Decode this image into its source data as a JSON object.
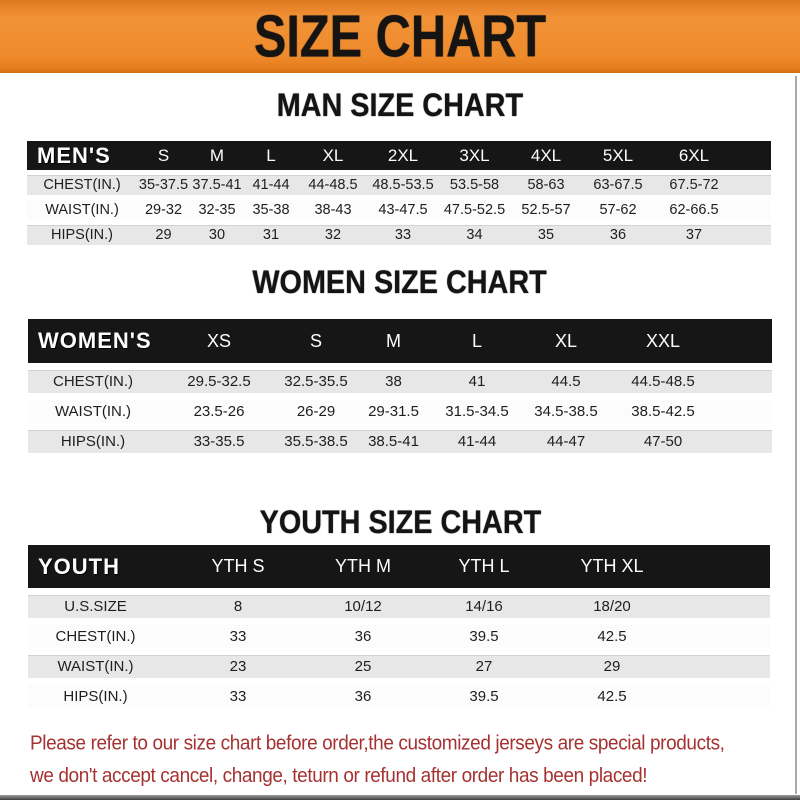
{
  "banner": {
    "title": "SIZE CHART"
  },
  "sections": {
    "men": {
      "heading": "MAN SIZE CHART"
    },
    "women": {
      "heading": "WOMEN SIZE CHART"
    },
    "youth": {
      "heading": "YOUTH SIZE CHART"
    }
  },
  "tables": {
    "men": {
      "corner": "MEN'S",
      "columns": [
        "S",
        "M",
        "L",
        "XL",
        "2XL",
        "3XL",
        "4XL",
        "5XL",
        "6XL"
      ],
      "rows": [
        {
          "label": "CHEST(IN.)",
          "values": [
            "35-37.5",
            "37.5-41",
            "41-44",
            "44-48.5",
            "48.5-53.5",
            "53.5-58",
            "58-63",
            "63-67.5",
            "67.5-72"
          ]
        },
        {
          "label": "WAIST(IN.)",
          "values": [
            "29-32",
            "32-35",
            "35-38",
            "38-43",
            "43-47.5",
            "47.5-52.5",
            "52.5-57",
            "57-62",
            "62-66.5"
          ]
        },
        {
          "label": "HIPS(IN.)",
          "values": [
            "29",
            "30",
            "31",
            "32",
            "33",
            "34",
            "35",
            "36",
            "37"
          ]
        }
      ]
    },
    "women": {
      "corner": "WOMEN'S",
      "columns": [
        "XS",
        "S",
        "M",
        "L",
        "XL",
        "XXL"
      ],
      "rows": [
        {
          "label": "CHEST(IN.)",
          "values": [
            "29.5-32.5",
            "32.5-35.5",
            "38",
            "41",
            "44.5",
            "44.5-48.5"
          ]
        },
        {
          "label": "WAIST(IN.)",
          "values": [
            "23.5-26",
            "26-29",
            "29-31.5",
            "31.5-34.5",
            "34.5-38.5",
            "38.5-42.5"
          ]
        },
        {
          "label": "HIPS(IN.)",
          "values": [
            "33-35.5",
            "35.5-38.5",
            "38.5-41",
            "41-44",
            "44-47",
            "47-50"
          ]
        }
      ]
    },
    "youth": {
      "corner": "YOUTH",
      "columns": [
        "YTH S",
        "YTH M",
        "YTH L",
        "YTH XL"
      ],
      "rows": [
        {
          "label": "U.S.SIZE",
          "values": [
            "8",
            "10/12",
            "14/16",
            "18/20"
          ]
        },
        {
          "label": "CHEST(IN.)",
          "values": [
            "33",
            "36",
            "39.5",
            "42.5"
          ]
        },
        {
          "label": "WAIST(IN.)",
          "values": [
            "23",
            "25",
            "27",
            "29"
          ]
        },
        {
          "label": "HIPS(IN.)",
          "values": [
            "33",
            "36",
            "39.5",
            "42.5"
          ]
        }
      ]
    }
  },
  "footer": {
    "lines": [
      "Please refer to our size chart before order,the customized jerseys are special products,",
      "we don't accept cancel, change, teturn or refund after order has been placed!"
    ]
  },
  "colors": {
    "banner_orange": "#EE8A2B",
    "header_black": "#161616",
    "row_gray": "#E7E7E7",
    "footer_red": "#A53230"
  }
}
